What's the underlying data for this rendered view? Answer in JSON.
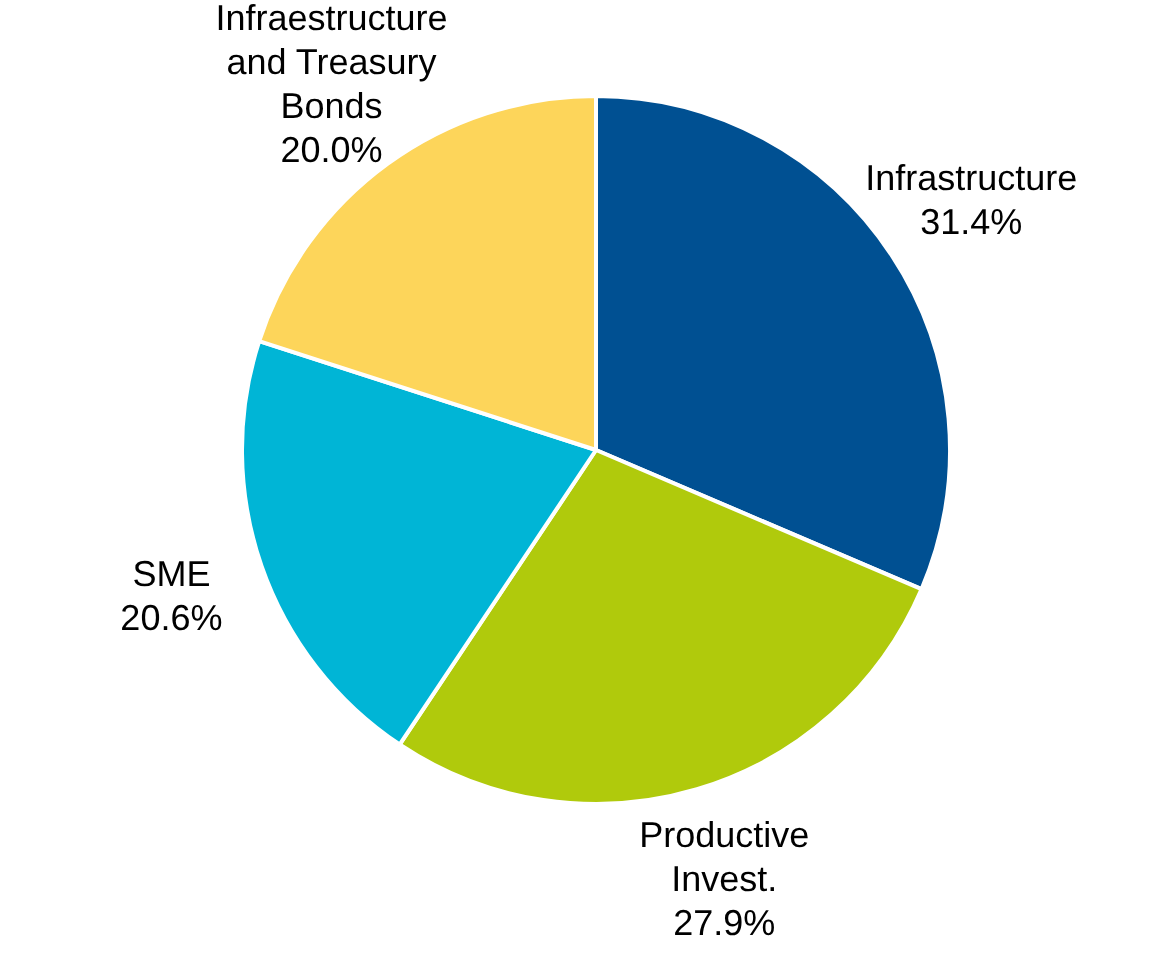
{
  "chart_data": {
    "type": "pie",
    "categories": [
      "Infrastructure",
      "Productive Invest.",
      "SME",
      "Infraestructure and Treasury Bonds"
    ],
    "values": [
      31.4,
      27.9,
      20.6,
      20.0
    ],
    "colors": [
      "#005092",
      "#b0ca0c",
      "#00b5d6",
      "#fdd55a"
    ],
    "value_labels": [
      "31.4%",
      "27.9%",
      "20.6%",
      "20.0%"
    ],
    "legend": false
  }
}
